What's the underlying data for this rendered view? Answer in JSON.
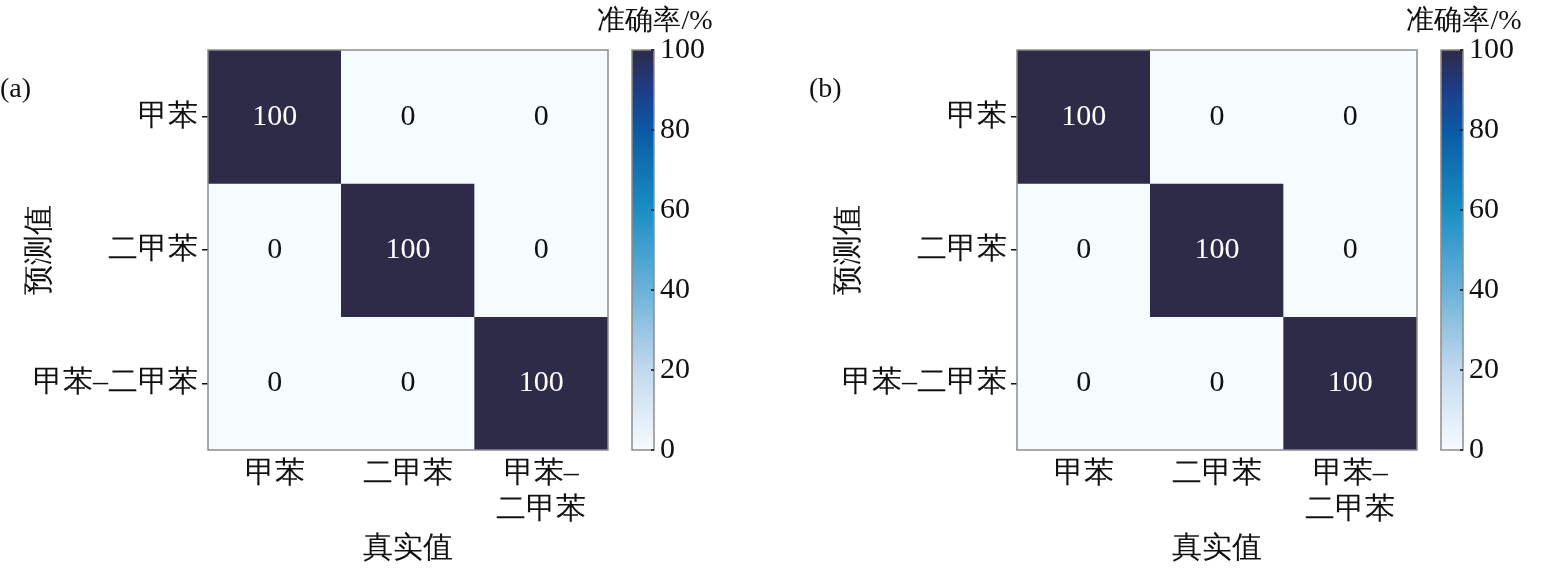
{
  "chart_data": [
    {
      "type": "heatmap",
      "title": "(a)",
      "xlabel": "真实值",
      "ylabel": "预测值",
      "clabel": "准确率/%",
      "categories": [
        "甲苯",
        "二甲苯",
        "甲苯–二甲苯"
      ],
      "y_categories": [
        "甲苯",
        "二甲苯",
        "甲苯–二甲苯"
      ],
      "cells": [
        [
          100,
          0,
          0
        ],
        [
          0,
          100,
          0
        ],
        [
          0,
          0,
          100
        ]
      ],
      "clim": [
        0,
        100
      ],
      "cticks": [
        0,
        20,
        40,
        60,
        80,
        100
      ],
      "data_labels": true
    },
    {
      "type": "heatmap",
      "title": "(b)",
      "xlabel": "真实值",
      "ylabel": "预测值",
      "clabel": "准确率/%",
      "categories": [
        "甲苯",
        "二甲苯",
        "甲苯–二甲苯"
      ],
      "y_categories": [
        "甲苯",
        "二甲苯",
        "甲苯–二甲苯"
      ],
      "cells": [
        [
          100,
          0,
          0
        ],
        [
          0,
          100,
          0
        ],
        [
          0,
          0,
          100
        ]
      ],
      "clim": [
        0,
        100
      ],
      "cticks": [
        0,
        20,
        40,
        60,
        80,
        100
      ],
      "data_labels": true
    }
  ]
}
